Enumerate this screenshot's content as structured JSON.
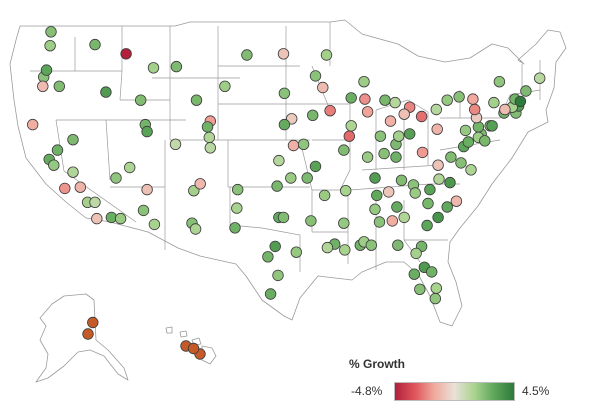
{
  "legend": {
    "title": "% Growth",
    "min_label": "-4.8%",
    "max_label": "4.5%",
    "min_value": -4.8,
    "max_value": 4.5,
    "colors": [
      "#b1213c",
      "#e0565c",
      "#f1a99e",
      "#e9e2d7",
      "#a8d38e",
      "#5ea75a",
      "#2d7a3a"
    ]
  },
  "alaska_hawaii_color": "#c45a28",
  "locations": [
    {
      "lon": -122.3,
      "lat": 47.6,
      "growth": 1.6
    },
    {
      "lon": -122.2,
      "lat": 48.8,
      "growth": 2.1
    },
    {
      "lon": -117.4,
      "lat": 47.7,
      "growth": 2.4
    },
    {
      "lon": -123.0,
      "lat": 44.9,
      "growth": 2.0
    },
    {
      "lon": -122.7,
      "lat": 45.5,
      "growth": 3.0
    },
    {
      "lon": -123.1,
      "lat": 44.1,
      "growth": -1.2
    },
    {
      "lon": -121.3,
      "lat": 44.1,
      "growth": 2.2
    },
    {
      "lon": -124.2,
      "lat": 40.8,
      "growth": -1.6
    },
    {
      "lon": -122.4,
      "lat": 37.8,
      "growth": 2.8
    },
    {
      "lon": -121.9,
      "lat": 37.3,
      "growth": 1.8
    },
    {
      "lon": -121.5,
      "lat": 38.6,
      "growth": 2.6
    },
    {
      "lon": -119.8,
      "lat": 36.7,
      "growth": 1.2
    },
    {
      "lon": -119.0,
      "lat": 35.4,
      "growth": -1.4
    },
    {
      "lon": -120.7,
      "lat": 35.3,
      "growth": -2.1
    },
    {
      "lon": -118.2,
      "lat": 34.1,
      "growth": 1.5
    },
    {
      "lon": -117.2,
      "lat": 32.7,
      "growth": -1.0
    },
    {
      "lon": -117.4,
      "lat": 34.1,
      "growth": 0.9
    },
    {
      "lon": -115.6,
      "lat": 32.8,
      "growth": 2.7
    },
    {
      "lon": -119.8,
      "lat": 39.5,
      "growth": 2.3
    },
    {
      "lon": -115.1,
      "lat": 36.2,
      "growth": 1.9
    },
    {
      "lon": -116.2,
      "lat": 43.6,
      "growth": 3.4
    },
    {
      "lon": -112.4,
      "lat": 42.9,
      "growth": 2.2
    },
    {
      "lon": -111.9,
      "lat": 40.8,
      "growth": 2.5
    },
    {
      "lon": -111.7,
      "lat": 40.2,
      "growth": 3.1
    },
    {
      "lon": -113.6,
      "lat": 37.1,
      "growth": 1.3
    },
    {
      "lon": -112.1,
      "lat": 33.4,
      "growth": 2.0
    },
    {
      "lon": -110.9,
      "lat": 32.2,
      "growth": 1.4
    },
    {
      "lon": -111.7,
      "lat": 35.2,
      "growth": -1.1
    },
    {
      "lon": -114.6,
      "lat": 32.7,
      "growth": 1.7
    },
    {
      "lon": -114.0,
      "lat": 46.9,
      "growth": -4.8
    },
    {
      "lon": -108.5,
      "lat": 45.8,
      "growth": 2.3
    },
    {
      "lon": -111.0,
      "lat": 45.7,
      "growth": 1.5
    },
    {
      "lon": -104.8,
      "lat": 41.1,
      "growth": -1.9
    },
    {
      "lon": -106.3,
      "lat": 42.9,
      "growth": 2.4
    },
    {
      "lon": -104.9,
      "lat": 39.7,
      "growth": 1.2
    },
    {
      "lon": -105.1,
      "lat": 40.6,
      "growth": 2.6
    },
    {
      "lon": -104.8,
      "lat": 38.8,
      "growth": 1.0
    },
    {
      "lon": -108.6,
      "lat": 39.1,
      "growth": 0.8
    },
    {
      "lon": -106.6,
      "lat": 35.1,
      "growth": 1.5
    },
    {
      "lon": -106.8,
      "lat": 32.3,
      "growth": 2.1
    },
    {
      "lon": -105.9,
      "lat": 35.7,
      "growth": -1.3
    },
    {
      "lon": -100.8,
      "lat": 46.8,
      "growth": 2.2
    },
    {
      "lon": -96.8,
      "lat": 46.9,
      "growth": -1.0
    },
    {
      "lon": -96.7,
      "lat": 43.5,
      "growth": 2.0
    },
    {
      "lon": -103.2,
      "lat": 44.1,
      "growth": 1.6
    },
    {
      "lon": -95.9,
      "lat": 41.3,
      "growth": -0.8
    },
    {
      "lon": -96.7,
      "lat": 40.8,
      "growth": 2.8
    },
    {
      "lon": -97.3,
      "lat": 37.7,
      "growth": 1.1
    },
    {
      "lon": -95.7,
      "lat": 39.0,
      "growth": -1.5
    },
    {
      "lon": -97.5,
      "lat": 35.5,
      "growth": 2.4
    },
    {
      "lon": -96.0,
      "lat": 36.2,
      "growth": 1.7
    },
    {
      "lon": -97.3,
      "lat": 32.8,
      "growth": 2.9
    },
    {
      "lon": -96.8,
      "lat": 32.8,
      "growth": 2.2
    },
    {
      "lon": -95.4,
      "lat": 29.8,
      "growth": 1.8
    },
    {
      "lon": -97.7,
      "lat": 30.3,
      "growth": 3.3
    },
    {
      "lon": -98.5,
      "lat": 29.4,
      "growth": 2.5
    },
    {
      "lon": -97.4,
      "lat": 27.8,
      "growth": 1.9
    },
    {
      "lon": -98.2,
      "lat": 26.2,
      "growth": 2.7
    },
    {
      "lon": -101.9,
      "lat": 33.6,
      "growth": 1.4
    },
    {
      "lon": -101.8,
      "lat": 35.2,
      "growth": 2.0
    },
    {
      "lon": -106.4,
      "lat": 31.8,
      "growth": 1.3
    },
    {
      "lon": -102.1,
      "lat": 31.9,
      "growth": 2.6
    },
    {
      "lon": -93.3,
      "lat": 45.0,
      "growth": 2.0
    },
    {
      "lon": -92.5,
      "lat": 44.0,
      "growth": -1.2
    },
    {
      "lon": -92.1,
      "lat": 46.8,
      "growth": 1.5
    },
    {
      "lon": -93.6,
      "lat": 41.6,
      "growth": 2.4
    },
    {
      "lon": -91.7,
      "lat": 42.0,
      "growth": -2.5
    },
    {
      "lon": -94.6,
      "lat": 39.1,
      "growth": 1.9
    },
    {
      "lon": -90.2,
      "lat": 38.6,
      "growth": 2.2
    },
    {
      "lon": -93.3,
      "lat": 37.2,
      "growth": 3.1
    },
    {
      "lon": -92.3,
      "lat": 34.7,
      "growth": 1.7
    },
    {
      "lon": -94.2,
      "lat": 36.2,
      "growth": 2.3
    },
    {
      "lon": -91.2,
      "lat": 30.5,
      "growth": 2.6
    },
    {
      "lon": -90.1,
      "lat": 30.0,
      "growth": 1.4
    },
    {
      "lon": -93.8,
      "lat": 32.5,
      "growth": 2.1
    },
    {
      "lon": -92.0,
      "lat": 30.2,
      "growth": 1.2
    },
    {
      "lon": -90.2,
      "lat": 32.3,
      "growth": 1.8
    },
    {
      "lon": -88.4,
      "lat": 30.4,
      "growth": 2.5
    },
    {
      "lon": -87.9,
      "lat": 43.0,
      "growth": -2.2
    },
    {
      "lon": -89.4,
      "lat": 43.1,
      "growth": 2.7
    },
    {
      "lon": -88.0,
      "lat": 44.5,
      "growth": 1.6
    },
    {
      "lon": -87.6,
      "lat": 41.9,
      "growth": -1.8
    },
    {
      "lon": -89.6,
      "lat": 39.8,
      "growth": -2.9
    },
    {
      "lon": -89.4,
      "lat": 40.7,
      "growth": 1.3
    },
    {
      "lon": -83.0,
      "lat": 42.3,
      "growth": -2.4
    },
    {
      "lon": -85.7,
      "lat": 42.9,
      "growth": 2.4
    },
    {
      "lon": -84.6,
      "lat": 42.7,
      "growth": 1.1
    },
    {
      "lon": -86.2,
      "lat": 39.8,
      "growth": 2.0
    },
    {
      "lon": -85.1,
      "lat": 41.1,
      "growth": -1.5
    },
    {
      "lon": -87.6,
      "lat": 38.0,
      "growth": 1.7
    },
    {
      "lon": -84.5,
      "lat": 39.1,
      "growth": 2.3
    },
    {
      "lon": -83.0,
      "lat": 40.0,
      "growth": 3.2
    },
    {
      "lon": -81.7,
      "lat": 41.5,
      "growth": -2.8
    },
    {
      "lon": -83.6,
      "lat": 41.7,
      "growth": -1.1
    },
    {
      "lon": -84.2,
      "lat": 39.8,
      "growth": 1.5
    },
    {
      "lon": -85.8,
      "lat": 38.3,
      "growth": 2.1
    },
    {
      "lon": -84.5,
      "lat": 38.0,
      "growth": 2.6
    },
    {
      "lon": -86.8,
      "lat": 36.2,
      "growth": 3.3
    },
    {
      "lon": -90.0,
      "lat": 35.1,
      "growth": 1.4
    },
    {
      "lon": -83.9,
      "lat": 36.0,
      "growth": 2.2
    },
    {
      "lon": -85.3,
      "lat": 35.0,
      "growth": -0.9
    },
    {
      "lon": -86.8,
      "lat": 33.5,
      "growth": 1.8
    },
    {
      "lon": -86.3,
      "lat": 32.4,
      "growth": 2.0
    },
    {
      "lon": -86.6,
      "lat": 34.7,
      "growth": 2.9
    },
    {
      "lon": -88.0,
      "lat": 30.7,
      "growth": 1.6
    },
    {
      "lon": -84.4,
      "lat": 33.7,
      "growth": 2.8
    },
    {
      "lon": -81.1,
      "lat": 32.1,
      "growth": 3.0
    },
    {
      "lon": -83.6,
      "lat": 32.8,
      "growth": 1.2
    },
    {
      "lon": -84.9,
      "lat": 32.5,
      "growth": -1.6
    },
    {
      "lon": -84.3,
      "lat": 30.4,
      "growth": 2.3
    },
    {
      "lon": -81.7,
      "lat": 30.3,
      "growth": 2.5
    },
    {
      "lon": -81.4,
      "lat": 28.5,
      "growth": 3.4
    },
    {
      "lon": -82.5,
      "lat": 27.9,
      "growth": 2.7
    },
    {
      "lon": -80.2,
      "lat": 25.8,
      "growth": 1.9
    },
    {
      "lon": -81.9,
      "lat": 26.6,
      "growth": 2.1
    },
    {
      "lon": -80.1,
      "lat": 26.7,
      "growth": 1.4
    },
    {
      "lon": -87.2,
      "lat": 30.4,
      "growth": 2.0
    },
    {
      "lon": -82.3,
      "lat": 29.7,
      "growth": 1.5
    },
    {
      "lon": -80.6,
      "lat": 28.1,
      "growth": 2.6
    },
    {
      "lon": -80.8,
      "lat": 35.2,
      "growth": 3.1
    },
    {
      "lon": -78.6,
      "lat": 35.8,
      "growth": 3.5
    },
    {
      "lon": -79.8,
      "lat": 36.1,
      "growth": 1.2
    },
    {
      "lon": -82.6,
      "lat": 35.6,
      "growth": 2.0
    },
    {
      "lon": -77.9,
      "lat": 34.2,
      "growth": -1.3
    },
    {
      "lon": -81.0,
      "lat": 34.0,
      "growth": 2.4
    },
    {
      "lon": -79.9,
      "lat": 32.8,
      "growth": 3.6
    },
    {
      "lon": -82.4,
      "lat": 34.9,
      "growth": 1.7
    },
    {
      "lon": -78.9,
      "lat": 33.7,
      "growth": 2.9
    },
    {
      "lon": -77.4,
      "lat": 37.5,
      "growth": 2.1
    },
    {
      "lon": -76.3,
      "lat": 36.9,
      "growth": 1.3
    },
    {
      "lon": -79.9,
      "lat": 37.3,
      "growth": -1.0
    },
    {
      "lon": -77.1,
      "lat": 38.9,
      "growth": 3.0
    },
    {
      "lon": -78.5,
      "lat": 38.0,
      "growth": 2.2
    },
    {
      "lon": -81.6,
      "lat": 38.4,
      "growth": -2.0
    },
    {
      "lon": -80.0,
      "lat": 40.4,
      "growth": -1.4
    },
    {
      "lon": -75.2,
      "lat": 40.0,
      "growth": 2.3
    },
    {
      "lon": -76.9,
      "lat": 40.3,
      "growth": 1.8
    },
    {
      "lon": -75.5,
      "lat": 40.6,
      "growth": 2.5
    },
    {
      "lon": -75.7,
      "lat": 41.4,
      "growth": -0.8
    },
    {
      "lon": -80.1,
      "lat": 42.1,
      "growth": 1.1
    },
    {
      "lon": -76.6,
      "lat": 39.3,
      "growth": 2.7
    },
    {
      "lon": -75.5,
      "lat": 39.7,
      "growth": 1.6
    },
    {
      "lon": -74.2,
      "lat": 40.7,
      "growth": 2.0
    },
    {
      "lon": -74.0,
      "lat": 40.7,
      "growth": 3.2
    },
    {
      "lon": -74.8,
      "lat": 39.4,
      "growth": 2.4
    },
    {
      "lon": -73.8,
      "lat": 42.7,
      "growth": 1.5
    },
    {
      "lon": -76.1,
      "lat": 43.0,
      "growth": -1.7
    },
    {
      "lon": -77.6,
      "lat": 43.2,
      "growth": 2.1
    },
    {
      "lon": -78.9,
      "lat": 42.9,
      "growth": 1.8
    },
    {
      "lon": -75.9,
      "lat": 42.1,
      "growth": -2.3
    },
    {
      "lon": -72.7,
      "lat": 41.8,
      "growth": 2.6
    },
    {
      "lon": -71.4,
      "lat": 41.8,
      "growth": 2.2
    },
    {
      "lon": -71.1,
      "lat": 42.4,
      "growth": 3.3
    },
    {
      "lon": -71.8,
      "lat": 42.3,
      "growth": 1.4
    },
    {
      "lon": -72.6,
      "lat": 42.1,
      "growth": -1.2
    },
    {
      "lon": -71.5,
      "lat": 43.0,
      "growth": 2.5
    },
    {
      "lon": -73.2,
      "lat": 44.5,
      "growth": 1.9
    },
    {
      "lon": -70.3,
      "lat": 43.7,
      "growth": 2.3
    },
    {
      "lon": -68.8,
      "lat": 44.8,
      "growth": 1.0
    },
    {
      "lon": -70.9,
      "lat": 42.8,
      "growth": 4.5
    },
    {
      "lon": -149.9,
      "lat": 61.2,
      "growth": null
    },
    {
      "lon": -147.7,
      "lat": 64.8,
      "growth": null
    },
    {
      "lon": -157.9,
      "lat": 21.3,
      "growth": null
    },
    {
      "lon": -155.1,
      "lat": 19.7,
      "growth": null
    },
    {
      "lon": -156.4,
      "lat": 20.8,
      "growth": null
    }
  ]
}
